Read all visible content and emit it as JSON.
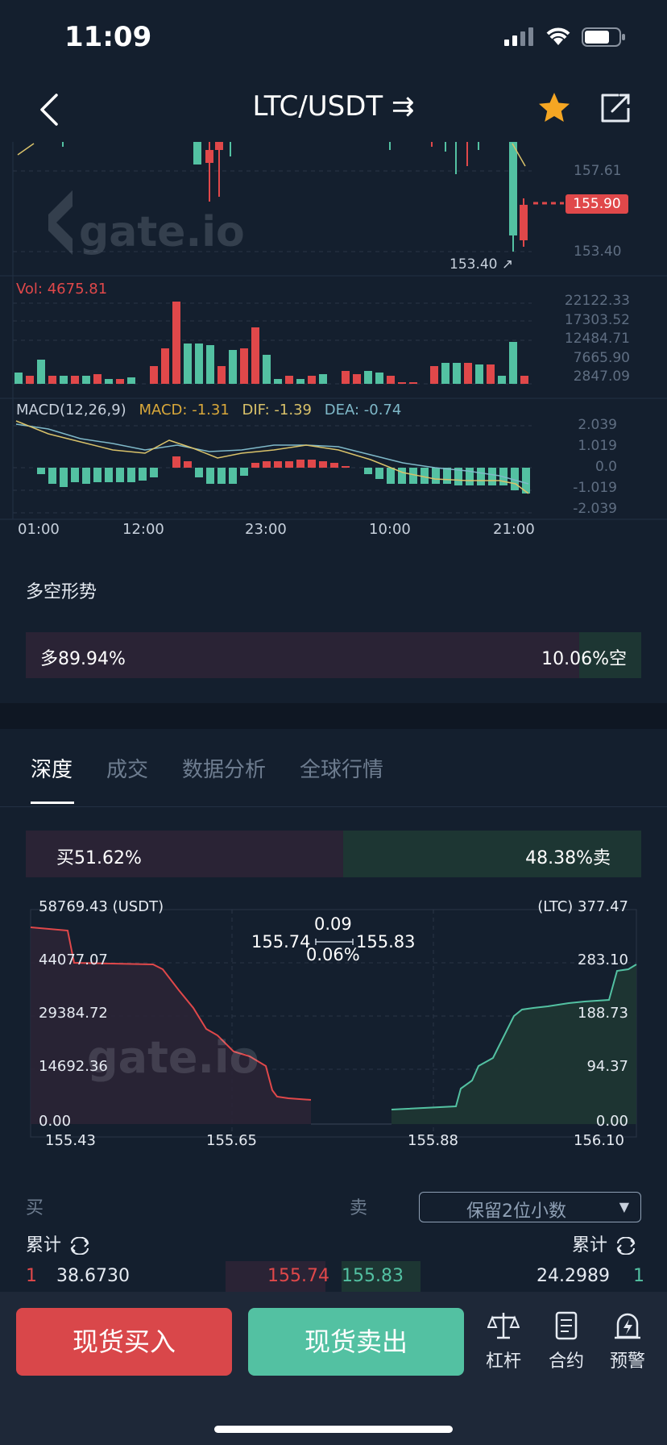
{
  "status_bar": {
    "time": "11:09"
  },
  "header": {
    "title": "LTC/USDT ⇉",
    "star_color": "#f5a623"
  },
  "kline": {
    "price_labels": [
      "157.61",
      "155.90",
      "153.40"
    ],
    "current_price": "155.90",
    "low_marker": "153.40 ↗",
    "vol_label": "Vol: 4675.81",
    "vol_axis": [
      "22122.33",
      "17303.52",
      "12484.71",
      "7665.90",
      "2847.09"
    ],
    "macd_params": "MACD(12,26,9)",
    "macd_value": "MACD: -1.31",
    "dif_value": "DIF: -1.39",
    "dea_value": "DEA: -0.74",
    "macd_axis": [
      "2.039",
      "1.019",
      "0.0",
      "-1.019",
      "-2.039"
    ],
    "time_axis": [
      "01:00",
      "12:00",
      "23:00",
      "10:00",
      "21:00"
    ],
    "watermark": "gate.io"
  },
  "sentiment": {
    "title": "多空形势",
    "long": "多89.94%",
    "short": "10.06%空",
    "long_pct": 89.94
  },
  "tabs": [
    "深度",
    "成交",
    "数据分析",
    "全球行情"
  ],
  "buy_sell": {
    "buy": "买51.62%",
    "sell": "48.38%卖",
    "buy_pct": 51.62
  },
  "depth": {
    "left_axis": [
      "58769.43 (USDT)",
      "44077.07",
      "29384.72",
      "14692.36",
      "0.00"
    ],
    "right_axis": [
      "(LTC) 377.47",
      "283.10",
      "188.73",
      "94.37",
      "0.00"
    ],
    "x_axis": [
      "155.43",
      "155.65",
      "155.88",
      "156.10"
    ],
    "spread": "0.09",
    "spread_pct": "0.06%",
    "bid": "155.74",
    "ask": "155.83"
  },
  "orderbook": {
    "buy_label": "买",
    "sell_label": "卖",
    "precision": "保留2位小数",
    "cum_label": "累计",
    "rows": [
      {
        "n_left": "1",
        "qty_left": "38.6730",
        "bid": "155.74",
        "ask": "155.83",
        "qty_right": "24.2989",
        "n_right": "1"
      }
    ]
  },
  "bottom_bar": {
    "buy_btn": "现货买入",
    "sell_btn": "现货卖出",
    "items": [
      "杠杆",
      "合约",
      "预警"
    ]
  },
  "colors": {
    "red": "#e0484a",
    "green": "#53c1a2",
    "bg": "#141f2e"
  }
}
